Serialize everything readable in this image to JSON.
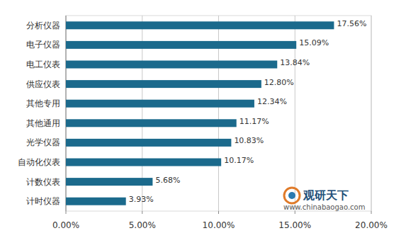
{
  "chart_data": {
    "type": "bar",
    "orientation": "horizontal",
    "categories": [
      "分析仪器",
      "电子仪器",
      "电工仪表",
      "供应仪表",
      "其他专用",
      "其他通用",
      "光学仪器",
      "自动化仪表",
      "计数仪表",
      "计时仪器"
    ],
    "values": [
      17.56,
      15.09,
      13.84,
      12.8,
      12.34,
      11.17,
      10.83,
      10.17,
      5.68,
      3.93
    ],
    "value_labels": [
      "17.56%",
      "15.09%",
      "13.84%",
      "12.80%",
      "12.34%",
      "11.17%",
      "10.83%",
      "10.17%",
      "5.68%",
      "3.93%"
    ],
    "color": "#1b6a8c",
    "xlim": [
      0,
      20
    ],
    "xticks": [
      {
        "value": 0,
        "label": "0.00%"
      },
      {
        "value": 5,
        "label": "5.00%"
      },
      {
        "value": 10,
        "label": "10.00%"
      },
      {
        "value": 15,
        "label": "15.00%"
      },
      {
        "value": 20,
        "label": "20.00%"
      }
    ],
    "grid": true,
    "data_labels": true,
    "annotations": [
      "观研天下",
      "www.chinabaogao.com"
    ]
  }
}
